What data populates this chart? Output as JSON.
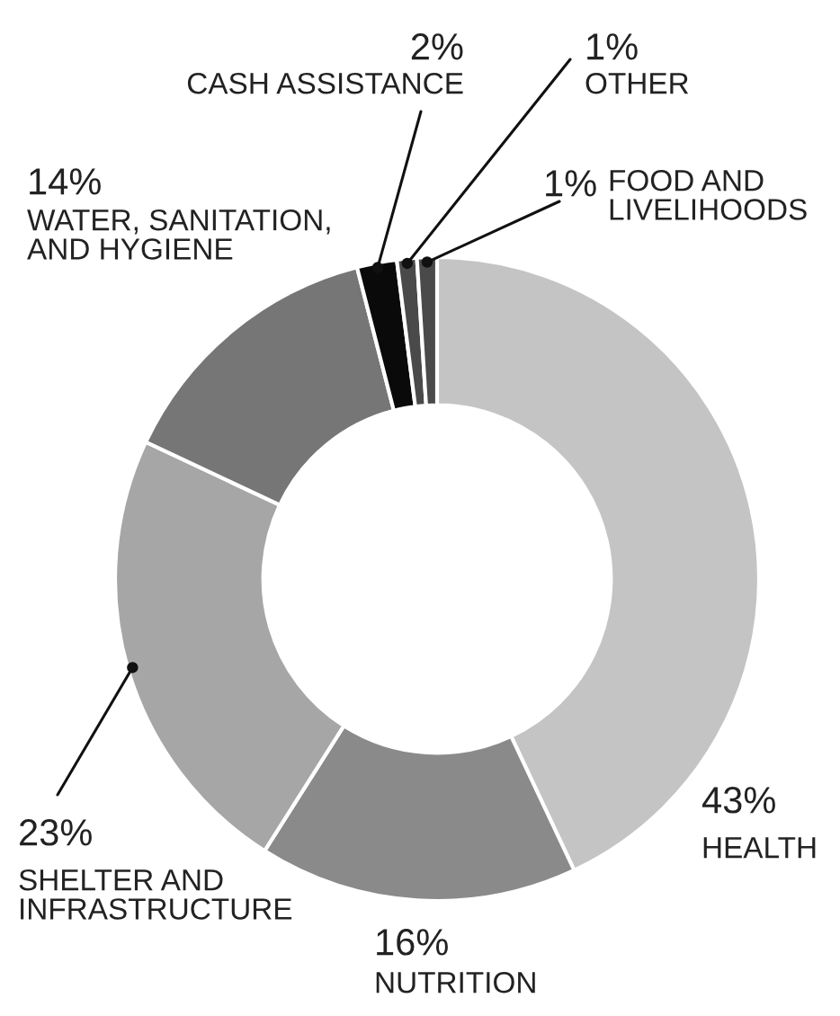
{
  "chart_data": {
    "type": "donut",
    "categories": [
      "HEALTH",
      "NUTRITION",
      "SHELTER AND\nINFRASTRUCTURE",
      "WATER, SANITATION,\nAND HYGIENE",
      "CASH ASSISTANCE",
      "OTHER",
      "FOOD AND\nLIVELIHOODS"
    ],
    "values": [
      43,
      16,
      23,
      14,
      2,
      1,
      1
    ],
    "colors": [
      "#c4c4c4",
      "#8a8a8a",
      "#a6a6a6",
      "#767676",
      "#0a0a0a",
      "#4a4a4a",
      "#4a4a4a"
    ],
    "value_labels": [
      "43%",
      "16%",
      "23%",
      "14%",
      "2%",
      "1%",
      "1%"
    ]
  }
}
